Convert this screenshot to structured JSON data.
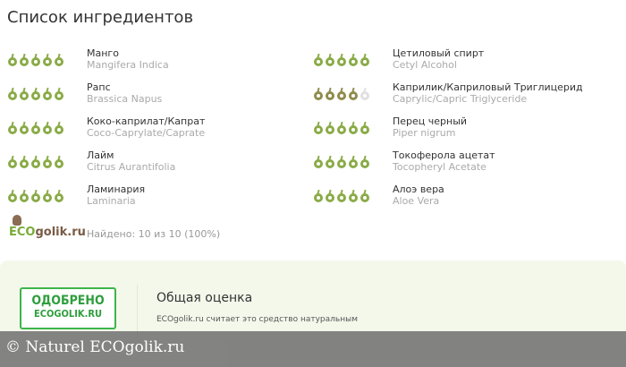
{
  "title": "Список ингредиентов",
  "colors": {
    "good": "#8aab47",
    "medium": "#8f8c4c",
    "empty": "#e0e0e0",
    "badge": "#3db54a"
  },
  "ingredients": [
    {
      "name": "Манго",
      "latin": "Mangifera Indica",
      "rating": 5,
      "level": "good"
    },
    {
      "name": "Рапс",
      "latin": "Brassica Napus",
      "rating": 5,
      "level": "good"
    },
    {
      "name": "Коко-каприлат/Капрат",
      "latin": "Coco-Caprylate/Caprate",
      "rating": 5,
      "level": "good"
    },
    {
      "name": "Лайм",
      "latin": "Citrus Aurantifolia",
      "rating": 5,
      "level": "good"
    },
    {
      "name": "Ламинария",
      "latin": "Laminaria",
      "rating": 5,
      "level": "good"
    },
    {
      "name": "Цетиловый спирт",
      "latin": "Cetyl Alcohol",
      "rating": 5,
      "level": "good"
    },
    {
      "name": "Каприлик/Каприловый Триглицерид",
      "latin": "Caprylic/Capric Triglyceride",
      "rating": 4,
      "level": "medium"
    },
    {
      "name": "Перец черный",
      "latin": "Piper nigrum",
      "rating": 5,
      "level": "good"
    },
    {
      "name": "Токоферола ацетат",
      "latin": "Tocopheryl Acetate",
      "rating": 5,
      "level": "good"
    },
    {
      "name": "Алоэ вера",
      "latin": "Aloe Vera",
      "rating": 5,
      "level": "good"
    }
  ],
  "logo": {
    "eco": "ECO",
    "golik": "golik.ru"
  },
  "found": "Найдено: 10 из 10 (100%)",
  "badge": {
    "line1": "ОДОБРЕНО",
    "line2": "ECOGOLIK.RU"
  },
  "overall": {
    "title": "Общая оценка",
    "text": "ECOgolik.ru считает это средство натуральным"
  },
  "watermark": "©  Naturel  ECOgolik.ru"
}
